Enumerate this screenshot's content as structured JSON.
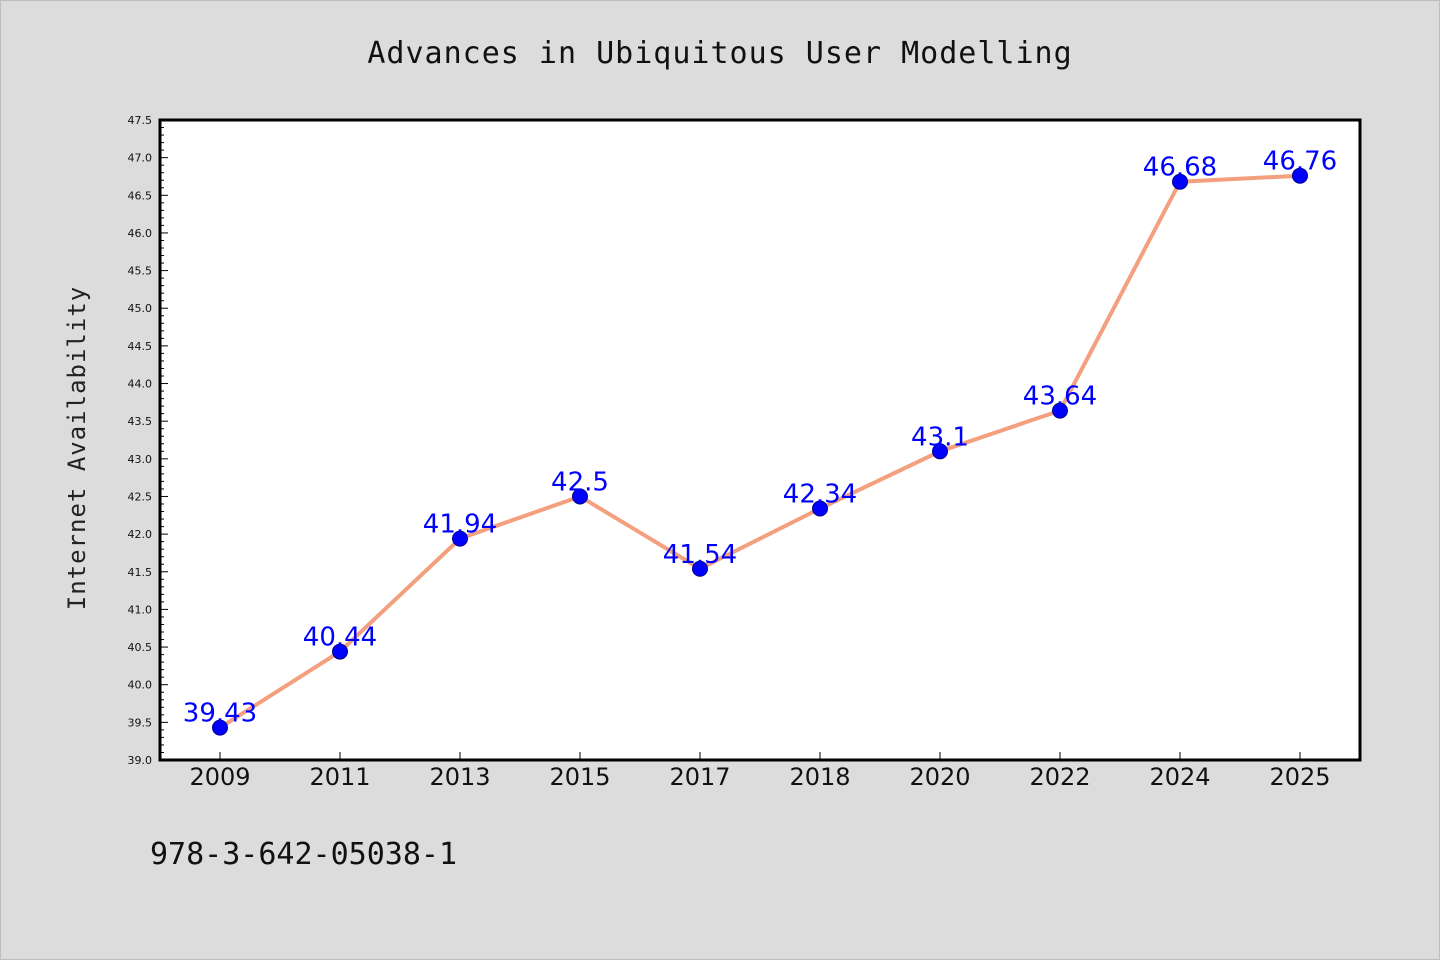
{
  "chart_data": {
    "type": "line",
    "title": "Advances in Ubiquitous User Modelling",
    "xlabel": "",
    "ylabel": "Internet Availability",
    "categories": [
      "2009",
      "2011",
      "2013",
      "2015",
      "2017",
      "2018",
      "2020",
      "2022",
      "2024",
      "2025"
    ],
    "series": [
      {
        "values": [
          39.43,
          40.44,
          41.94,
          42.5,
          41.54,
          42.34,
          43.1,
          43.64,
          46.68,
          46.76
        ],
        "labels": [
          "39.43",
          "40.44",
          "41.94",
          "42.5",
          "41.54",
          "42.34",
          "43.1",
          "43.64",
          "46.68",
          "46.76"
        ]
      }
    ],
    "ylim": [
      39.0,
      47.5
    ],
    "yticks": [
      "39.0",
      "39.5",
      "40.0",
      "40.5",
      "41.0",
      "41.5",
      "42.0",
      "42.5",
      "43.0",
      "43.5",
      "44.0",
      "44.5",
      "45.0",
      "45.5",
      "46.0",
      "46.5",
      "47.0",
      "47.5"
    ],
    "grid": false,
    "legend": "none",
    "colors": {
      "line": "#f4a07e",
      "marker": "#0000ff",
      "label": "#0000ff",
      "background": "#dcdcdc",
      "plot_bg": "#ffffff"
    }
  },
  "footer": {
    "isbn": "978-3-642-05038-1"
  }
}
